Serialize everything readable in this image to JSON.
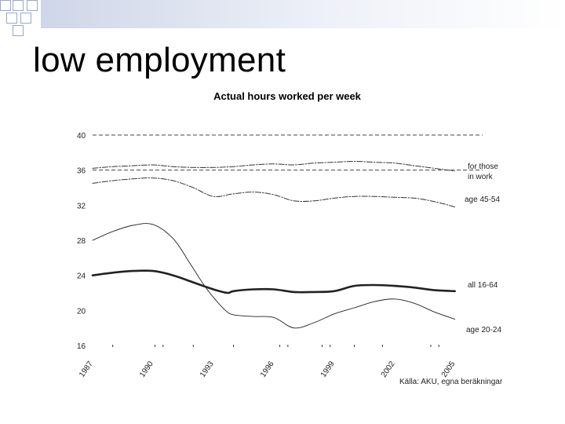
{
  "slide": {
    "title": "low employment"
  },
  "chart_data": {
    "type": "line",
    "title": "Actual hours worked per week",
    "xlabel": "",
    "ylabel": "",
    "ylim": [
      16,
      40
    ],
    "xlim": [
      1987,
      2005.4
    ],
    "yticks": [
      16,
      20,
      24,
      28,
      32,
      36,
      40
    ],
    "xticks": [
      "1987",
      "1990",
      "1993",
      "1996",
      "1999",
      "2002",
      "2005"
    ],
    "reference_lines": [
      40,
      36
    ],
    "series": [
      {
        "name": "for those in work",
        "label_lines": [
          "for those",
          "in work"
        ],
        "style": "dashdot",
        "x": [
          1987,
          1988,
          1989,
          1990,
          1991,
          1992,
          1993,
          1994,
          1995,
          1996,
          1997,
          1998,
          1999,
          2000,
          2001,
          2002,
          2003,
          2004,
          2005
        ],
        "y": [
          36.2,
          36.4,
          36.5,
          36.6,
          36.4,
          36.3,
          36.3,
          36.4,
          36.6,
          36.7,
          36.6,
          36.8,
          36.9,
          37.0,
          36.9,
          36.8,
          36.5,
          36.2,
          35.9
        ]
      },
      {
        "name": "age 45-54",
        "label_lines": [
          "age 45-54"
        ],
        "style": "dashdot",
        "x": [
          1987,
          1988,
          1989,
          1990,
          1991,
          1992,
          1993,
          1994,
          1995,
          1996,
          1997,
          1998,
          1999,
          2000,
          2001,
          2002,
          2003,
          2004,
          2005
        ],
        "y": [
          34.5,
          34.8,
          35.0,
          35.1,
          34.8,
          34.0,
          33.0,
          33.3,
          33.5,
          33.2,
          32.5,
          32.5,
          32.8,
          33.0,
          33.0,
          32.9,
          32.8,
          32.4,
          31.8
        ]
      },
      {
        "name": "all 16-64",
        "label_lines": [
          "all 16-64"
        ],
        "style": "bold",
        "x": [
          1987,
          1988,
          1989,
          1990,
          1991,
          1992,
          1993,
          1993.7,
          1994,
          1995,
          1996,
          1997,
          1998,
          1999,
          2000,
          2001,
          2002,
          2003,
          2004,
          2005
        ],
        "y": [
          24.0,
          24.3,
          24.5,
          24.5,
          24.0,
          23.2,
          22.4,
          22.0,
          22.2,
          22.4,
          22.4,
          22.1,
          22.1,
          22.2,
          22.8,
          22.9,
          22.8,
          22.6,
          22.3,
          22.2
        ]
      },
      {
        "name": "age 20-24",
        "label_lines": [
          "age 20-24"
        ],
        "style": "thin",
        "x": [
          1987,
          1988,
          1989,
          1990,
          1991,
          1991.8,
          1992.5,
          1993,
          1993.6,
          1994,
          1995,
          1996,
          1997,
          1998,
          1999,
          2000,
          2001,
          2002,
          2003,
          2004,
          2005
        ],
        "y": [
          28.0,
          29.0,
          29.7,
          29.8,
          28.2,
          25.5,
          23.0,
          21.5,
          20.0,
          19.5,
          19.3,
          19.2,
          18.0,
          18.6,
          19.6,
          20.3,
          21.0,
          21.3,
          20.8,
          19.8,
          19.0
        ]
      }
    ],
    "source": "Källa: AKU, egna beräkningar"
  }
}
